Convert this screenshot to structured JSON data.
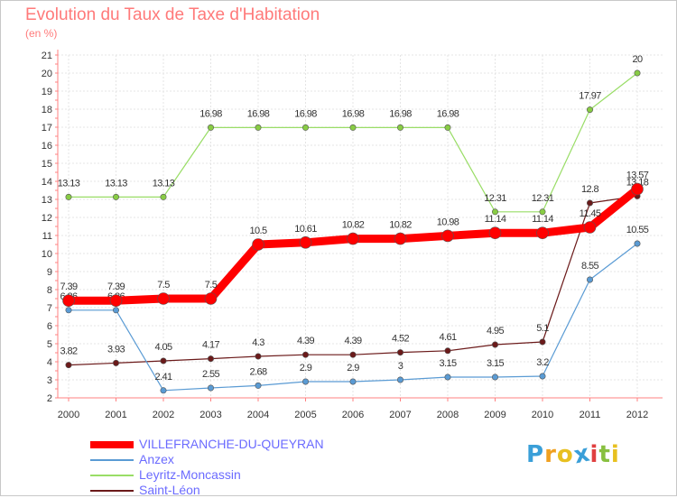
{
  "chart_data": {
    "type": "line",
    "title": "Evolution du Taux de Taxe d'Habitation",
    "ylabel": "(en %)",
    "x": [
      "2000",
      "2001",
      "2002",
      "2003",
      "2004",
      "2005",
      "2006",
      "2007",
      "2008",
      "2009",
      "2010",
      "2011",
      "2012"
    ],
    "ylim": [
      2,
      21
    ],
    "yticks": [
      2,
      3,
      4,
      5,
      6,
      7,
      8,
      9,
      10,
      11,
      12,
      13,
      14,
      15,
      16,
      17,
      18,
      19,
      20,
      21
    ],
    "grid": true,
    "legend": "bottom-left",
    "series": [
      {
        "name": "Saint-Léon",
        "color": "#6b1a1a",
        "values": [
          3.82,
          3.93,
          4.05,
          4.17,
          4.3,
          4.39,
          4.39,
          4.52,
          4.61,
          4.95,
          5.1,
          12.8,
          13.18
        ],
        "labels": [
          "3.82",
          "3.93",
          "4.05",
          "4.17",
          "4.3",
          "4.39",
          "4.39",
          "4.52",
          "4.61",
          "4.95",
          "5.1",
          "12.8",
          "13.18"
        ]
      },
      {
        "name": "Anzex",
        "color": "#5a9bd4",
        "values": [
          6.86,
          6.86,
          2.41,
          2.55,
          2.68,
          2.9,
          2.9,
          3,
          3.15,
          3.15,
          3.2,
          8.55,
          10.55
        ],
        "labels": [
          "6.86",
          "6.86",
          "2.41",
          "2.55",
          "2.68",
          "2.9",
          "2.9",
          "3",
          "3.15",
          "3.15",
          "3.2",
          "8.55",
          "10.55"
        ]
      },
      {
        "name": "Leyritz-Moncassin",
        "color": "#99dd66",
        "values": [
          13.13,
          13.13,
          13.13,
          16.98,
          16.98,
          16.98,
          16.98,
          16.98,
          16.98,
          12.31,
          12.31,
          17.97,
          20
        ],
        "labels": [
          "13.13",
          "13.13",
          "13.13",
          "16.98",
          "16.98",
          "16.98",
          "16.98",
          "16.98",
          "16.98",
          "12.31",
          "12.31",
          "17.97",
          "20"
        ]
      },
      {
        "name": "VILLEFRANCHE-DU-QUEYRAN",
        "color": "#ff0000",
        "values": [
          7.39,
          7.39,
          7.5,
          7.5,
          10.5,
          10.61,
          10.82,
          10.82,
          10.98,
          11.14,
          11.14,
          11.45,
          13.57
        ],
        "labels": [
          "7.39",
          "7.39",
          "7.5",
          "7.5",
          "10.5",
          "10.61",
          "10.82",
          "10.82",
          "10.98",
          "11.14",
          "11.14",
          "11.45",
          "13.57"
        ]
      }
    ],
    "legend_items": [
      {
        "name": "VILLEFRANCHE-DU-QUEYRAN",
        "color": "#ff0000"
      },
      {
        "name": "Anzex",
        "color": "#5a9bd4"
      },
      {
        "name": "Leyritz-Moncassin",
        "color": "#99dd66"
      },
      {
        "name": "Saint-Léon",
        "color": "#6b1a1a"
      }
    ]
  },
  "logo": {
    "letters": [
      "P",
      "r",
      "o",
      "x",
      "i",
      "t",
      "i"
    ],
    "colors": [
      "#3a9fd8",
      "#f0a020",
      "#e8c020",
      "#3a9fd8",
      "#e04040",
      "#88c040",
      "#e8c020"
    ]
  }
}
